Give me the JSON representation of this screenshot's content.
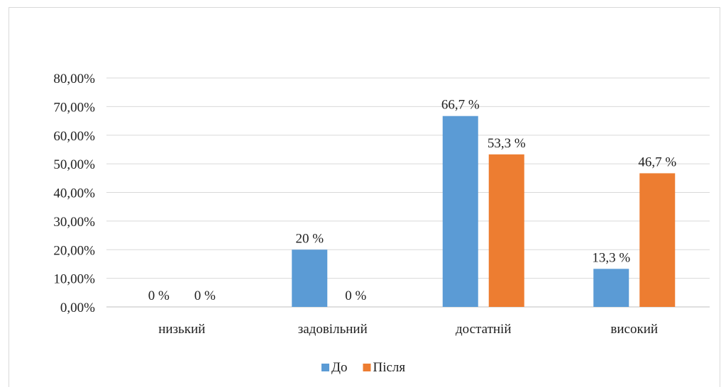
{
  "chart_data": {
    "type": "bar",
    "categories": [
      "низький",
      "задовільний",
      "достатній",
      "високий"
    ],
    "series": [
      {
        "name": "До",
        "values": [
          0,
          20,
          66.7,
          13.3
        ],
        "labels": [
          "0 %",
          "20 %",
          "66,7 %",
          "13,3 %"
        ],
        "color": "#5b9bd5"
      },
      {
        "name": "Після",
        "values": [
          0,
          0,
          53.3,
          46.7
        ],
        "labels": [
          "0 %",
          "0 %",
          "53,3 %",
          "46,7 %"
        ],
        "color": "#ed7d31"
      }
    ],
    "yticks": [
      {
        "value": 0,
        "label": "0,00%"
      },
      {
        "value": 10,
        "label": "10,00%"
      },
      {
        "value": 20,
        "label": "20,00%"
      },
      {
        "value": 30,
        "label": "30,00%"
      },
      {
        "value": 40,
        "label": "40,00%"
      },
      {
        "value": 50,
        "label": "50,00%"
      },
      {
        "value": 60,
        "label": "60,00%"
      },
      {
        "value": 70,
        "label": "70,00%"
      },
      {
        "value": 80,
        "label": "80,00%"
      }
    ],
    "ylim": [
      0,
      80
    ],
    "grid": true,
    "legend": "bottom"
  }
}
